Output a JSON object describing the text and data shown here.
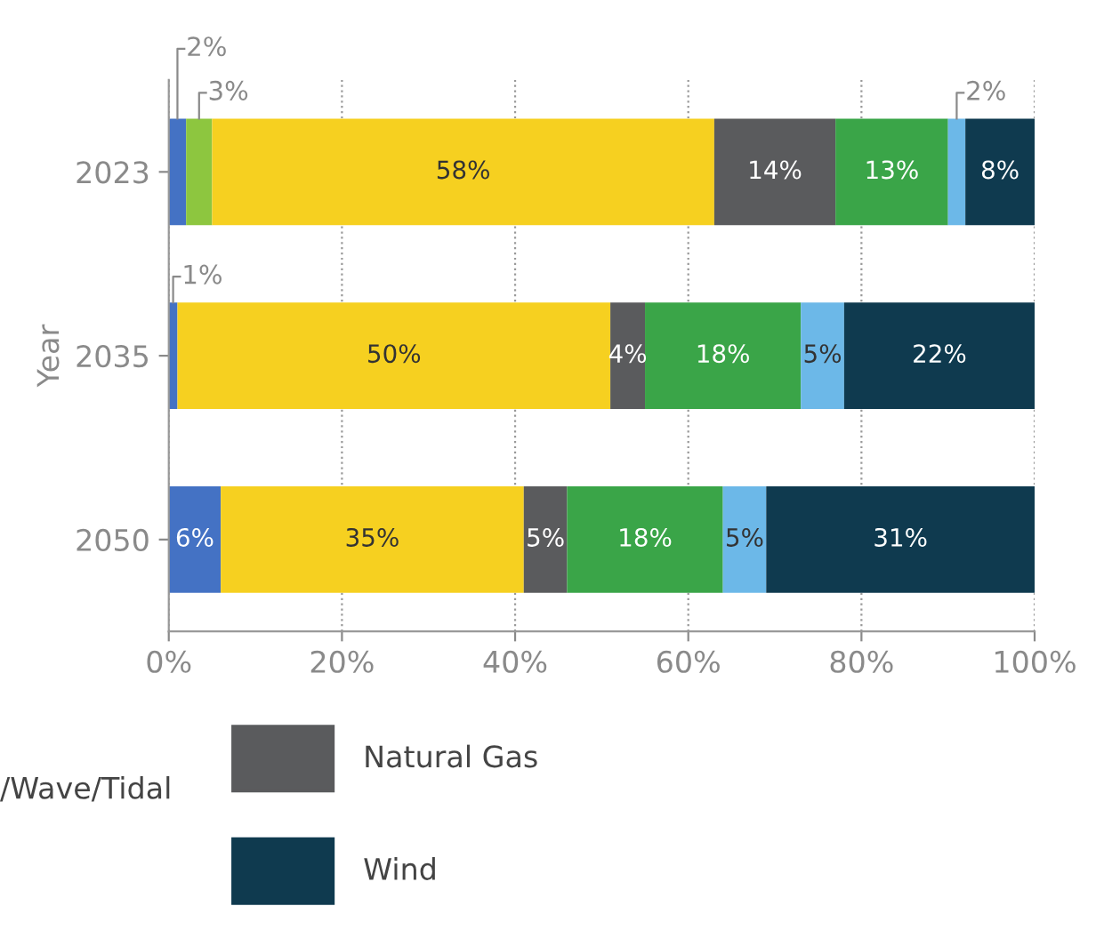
{
  "chart_data": {
    "type": "bar",
    "orientation": "horizontal",
    "stacked": true,
    "ylabel": "Year",
    "categories": [
      "2023",
      "2035",
      "2050"
    ],
    "series": [
      {
        "color": "#4472c4",
        "values": [
          2,
          1,
          6
        ],
        "value_labels": [
          "2%",
          "1%",
          "6%"
        ]
      },
      {
        "color": "#8dc63f",
        "values": [
          3,
          null,
          null
        ],
        "value_labels": [
          "3%",
          null,
          null
        ]
      },
      {
        "color": "#f6d020",
        "values": [
          58,
          50,
          35
        ],
        "value_labels": [
          "58%",
          "50%",
          "35%"
        ]
      },
      {
        "name": "Natural Gas",
        "color": "#5a5b5d",
        "values": [
          14,
          4,
          5
        ],
        "value_labels": [
          "14%",
          "4%",
          "5%"
        ]
      },
      {
        "color": "#3aa548",
        "values": [
          13,
          18,
          18
        ],
        "value_labels": [
          "13%",
          "18%",
          "18%"
        ]
      },
      {
        "color": "#6cb8e8",
        "values": [
          2,
          5,
          5
        ],
        "value_labels": [
          "2%",
          "5%",
          "5%"
        ]
      },
      {
        "name": "Wind",
        "color": "#0f3a4f",
        "values": [
          8,
          22,
          31
        ],
        "value_labels": [
          "8%",
          "22%",
          "31%"
        ]
      }
    ],
    "xlim": [
      0,
      100
    ],
    "xticks": [
      {
        "value": 0,
        "label": "0%"
      },
      {
        "value": 20,
        "label": "20%"
      },
      {
        "value": 40,
        "label": "40%"
      },
      {
        "value": 60,
        "label": "60%"
      },
      {
        "value": 80,
        "label": "80%"
      },
      {
        "value": 100,
        "label": "100%"
      }
    ],
    "grid": "x",
    "legend": "bottom",
    "annotations": [
      "/Wave/Tidal"
    ]
  }
}
